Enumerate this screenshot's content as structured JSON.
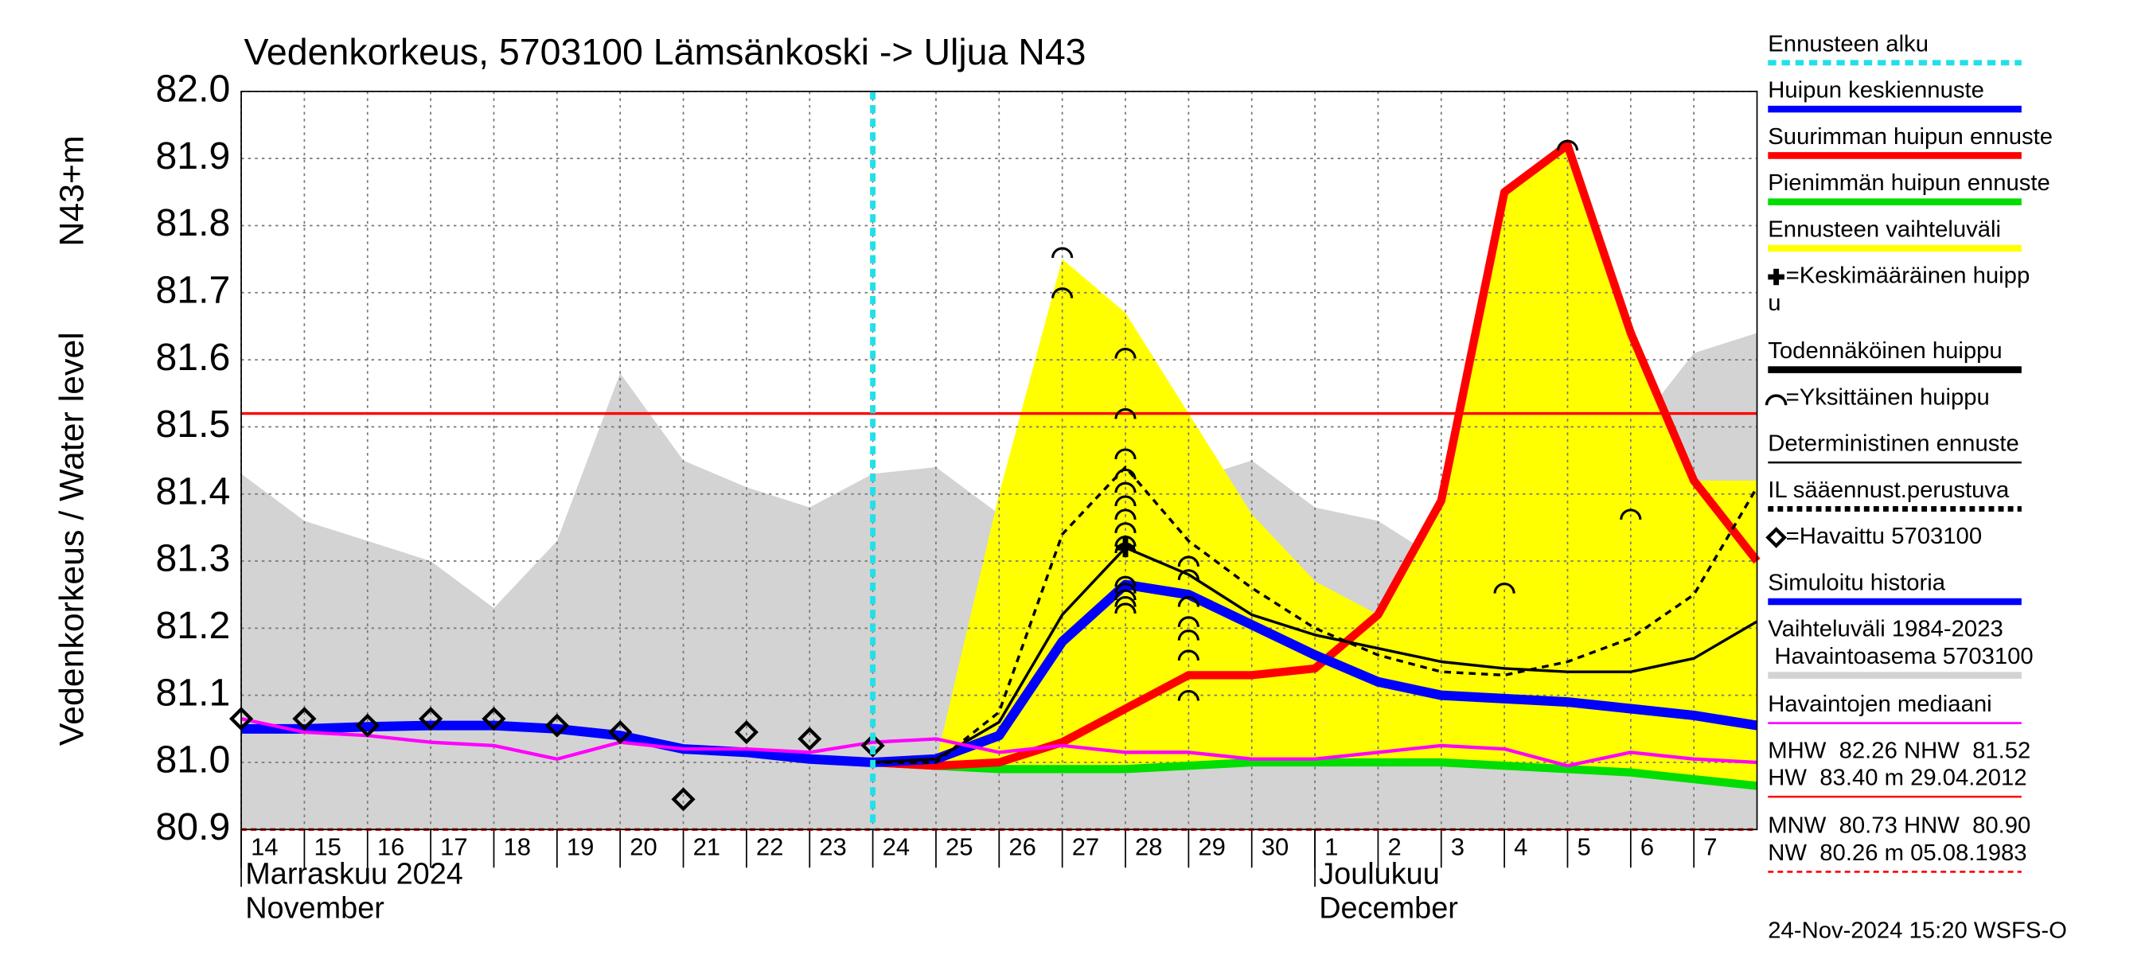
{
  "chart_data": {
    "type": "line",
    "title": "Vedenkorkeus, 5703100 Lämsänkoski -> Uljua N43",
    "ylabel": [
      "Vedenkorkeus / Water level",
      "N43+m"
    ],
    "footer": "24-Nov-2024 15:20 WSFS-O",
    "grid": true,
    "xlim": [
      0,
      24
    ],
    "ylim": [
      80.9,
      82.0
    ],
    "yticks": [
      {
        "value": 80.9,
        "label": "80.9"
      },
      {
        "value": 81.0,
        "label": "81.0"
      },
      81.1,
      81.2,
      81.3,
      81.4,
      81.5,
      81.6,
      81.7,
      81.8,
      81.9,
      {
        "value": 82.0,
        "label": "82.0"
      }
    ],
    "xticks": [
      {
        "value": 0,
        "label": "14"
      },
      {
        "value": 1,
        "label": "15"
      },
      {
        "value": 2,
        "label": "16"
      },
      {
        "value": 3,
        "label": "17"
      },
      {
        "value": 4,
        "label": "18"
      },
      {
        "value": 5,
        "label": "19"
      },
      {
        "value": 6,
        "label": "20"
      },
      {
        "value": 7,
        "label": "21"
      },
      {
        "value": 8,
        "label": "22"
      },
      {
        "value": 9,
        "label": "23"
      },
      {
        "value": 10,
        "label": "24"
      },
      {
        "value": 11,
        "label": "25"
      },
      {
        "value": 12,
        "label": "26"
      },
      {
        "value": 13,
        "label": "27"
      },
      {
        "value": 14,
        "label": "28"
      },
      {
        "value": 15,
        "label": "29"
      },
      {
        "value": 16,
        "label": "30"
      },
      {
        "value": 17,
        "label": "1"
      },
      {
        "value": 18,
        "label": "2"
      },
      {
        "value": 19,
        "label": "3"
      },
      {
        "value": 20,
        "label": "4"
      },
      {
        "value": 21,
        "label": "5"
      },
      {
        "value": 22,
        "label": "6"
      },
      {
        "value": 23,
        "label": "7"
      }
    ],
    "months": [
      {
        "value": 0,
        "label": [
          "Marraskuu 2024",
          "November"
        ]
      },
      {
        "value": 17,
        "label": [
          "Joulukuu",
          "December"
        ]
      }
    ],
    "forecast_start": 10,
    "hlines": [
      {
        "value": 81.52,
        "color": "#ff0000",
        "dashed": false
      },
      {
        "value": 80.9,
        "color": "#ff0000",
        "dashed": true
      }
    ],
    "x": [
      0,
      1,
      2,
      3,
      4,
      5,
      6,
      7,
      8,
      9,
      10,
      11,
      12,
      13,
      14,
      15,
      16,
      17,
      18,
      19,
      20,
      21,
      22,
      23,
      24
    ],
    "series": [
      {
        "kind": "band",
        "color": "#d3d3d3",
        "upper": [
          81.43,
          81.36,
          81.33,
          81.3,
          81.23,
          81.33,
          81.58,
          81.45,
          81.41,
          81.38,
          81.43,
          81.44,
          81.37,
          81.46,
          81.43,
          81.42,
          81.45,
          81.38,
          81.36,
          81.3,
          81.33,
          81.3,
          81.49,
          81.61,
          81.64
        ],
        "lower": [
          80.9,
          80.9,
          80.9,
          80.9,
          80.9,
          80.9,
          80.9,
          80.9,
          80.9,
          80.9,
          80.9,
          80.9,
          80.9,
          80.9,
          80.9,
          80.9,
          80.9,
          80.9,
          80.9,
          80.9,
          80.9,
          80.9,
          80.9,
          80.9,
          80.9
        ]
      },
      {
        "kind": "band",
        "color": "#ffff00",
        "upper": [
          null,
          null,
          null,
          null,
          null,
          null,
          null,
          null,
          null,
          null,
          81.0,
          81.0,
          81.4,
          81.75,
          81.67,
          81.52,
          81.37,
          81.27,
          81.22,
          81.39,
          81.85,
          81.92,
          81.64,
          81.42,
          81.42
        ],
        "lower": [
          null,
          null,
          null,
          null,
          null,
          null,
          null,
          null,
          null,
          null,
          81.0,
          80.995,
          80.99,
          80.99,
          80.99,
          80.995,
          81.0,
          81.0,
          81.0,
          81.0,
          80.995,
          80.99,
          80.985,
          80.975,
          80.965
        ]
      },
      {
        "kind": "line",
        "color": "#00dd00",
        "width": 6,
        "values": [
          null,
          null,
          null,
          null,
          null,
          null,
          null,
          null,
          null,
          null,
          81.0,
          80.995,
          80.99,
          80.99,
          80.99,
          80.995,
          81.0,
          81.0,
          81.0,
          81.0,
          80.995,
          80.99,
          80.985,
          80.975,
          80.965
        ]
      },
      {
        "kind": "line",
        "color": "#ff0000",
        "width": 6,
        "values": [
          null,
          null,
          null,
          null,
          null,
          null,
          null,
          null,
          null,
          null,
          81.0,
          80.995,
          81.0,
          81.03,
          81.08,
          81.13,
          81.13,
          81.14,
          81.22,
          81.39,
          81.85,
          81.92,
          81.64,
          81.42,
          81.3
        ]
      },
      {
        "kind": "line",
        "color": "#0000ff",
        "width": 7,
        "values": [
          81.05,
          81.05,
          81.053,
          81.055,
          81.055,
          81.05,
          81.04,
          81.02,
          81.015,
          81.005,
          81.0,
          81.005,
          81.04,
          81.18,
          81.265,
          81.25,
          81.205,
          81.16,
          81.12,
          81.1,
          81.095,
          81.09,
          81.08,
          81.07,
          81.055
        ]
      },
      {
        "kind": "line",
        "color": "#000000",
        "width": 2,
        "values": [
          null,
          null,
          null,
          null,
          null,
          null,
          null,
          null,
          null,
          null,
          81.0,
          81.005,
          81.06,
          81.22,
          81.32,
          81.28,
          81.22,
          81.19,
          81.17,
          81.15,
          81.14,
          81.135,
          81.135,
          81.155,
          81.21
        ]
      },
      {
        "kind": "line",
        "color": "#000000",
        "width": 2,
        "dashed": true,
        "values": [
          null,
          null,
          null,
          null,
          null,
          null,
          null,
          null,
          null,
          null,
          81.0,
          81.0,
          81.075,
          81.34,
          81.44,
          81.33,
          81.26,
          81.2,
          81.16,
          81.135,
          81.13,
          81.15,
          81.185,
          81.25,
          81.41
        ]
      },
      {
        "kind": "line",
        "color": "#ff00ff",
        "width": 2.5,
        "values": [
          81.065,
          81.045,
          81.04,
          81.03,
          81.025,
          81.005,
          81.03,
          81.02,
          81.02,
          81.015,
          81.03,
          81.035,
          81.015,
          81.025,
          81.015,
          81.015,
          81.005,
          81.005,
          81.015,
          81.025,
          81.02,
          80.995,
          81.015,
          81.005,
          81.0
        ]
      },
      {
        "kind": "markers",
        "marker": "diamond",
        "color": "#000000",
        "values": [
          81.065,
          81.065,
          81.055,
          81.065,
          81.065,
          81.055,
          81.045,
          80.945,
          81.045,
          81.035,
          81.025,
          null,
          null,
          null,
          null,
          null,
          null,
          null,
          null,
          null,
          null,
          null,
          null,
          null,
          null
        ]
      },
      {
        "kind": "markers",
        "marker": "arc",
        "color": "#000000",
        "x": [
          13,
          13,
          14,
          14,
          14,
          14,
          14,
          14,
          14,
          14,
          14,
          14,
          14,
          14,
          14,
          14,
          14,
          15,
          15,
          15,
          15,
          15,
          15,
          15,
          20,
          21,
          22
        ],
        "values": [
          81.76,
          81.7,
          81.61,
          81.52,
          81.46,
          81.43,
          81.41,
          81.39,
          81.37,
          81.35,
          81.33,
          81.32,
          81.27,
          81.26,
          81.25,
          81.24,
          81.23,
          81.3,
          81.28,
          81.24,
          81.21,
          81.19,
          81.16,
          81.1,
          81.26,
          81.92,
          81.37
        ]
      },
      {
        "kind": "markers",
        "marker": "plus",
        "color": "#000000",
        "x": [
          14
        ],
        "values": [
          81.32
        ]
      }
    ],
    "legend": [
      {
        "label": [
          "Ennusteen alku"
        ],
        "color": "#22e0e8",
        "style": "dashed"
      },
      {
        "label": [
          "Huipun keskiennuste"
        ],
        "color": "#0000ff",
        "style": "line"
      },
      {
        "label": [
          "Suurimman huipun ennuste"
        ],
        "color": "#ff0000",
        "style": "line"
      },
      {
        "label": [
          "Pienimmän huipun ennuste"
        ],
        "color": "#00dd00",
        "style": "line"
      },
      {
        "label": [
          "Ennusteen vaihteluväli"
        ],
        "color": "#ffff00",
        "style": "line"
      },
      {
        "label": [
          "=Keskimääräinen huipp",
          "u"
        ],
        "color": "#000000",
        "style": "plus"
      },
      {
        "label": [
          "Todennäköinen huippu"
        ],
        "color": "#000000",
        "style": "line"
      },
      {
        "label": [
          "=Yksittäinen huippu"
        ],
        "color": "#000000",
        "style": "arc"
      },
      {
        "label": [
          "Deterministinen ennuste"
        ],
        "color": "#000000",
        "style": "thin"
      },
      {
        "label": [
          "IL sääennust.perustuva"
        ],
        "color": "#000000",
        "style": "dashed"
      },
      {
        "label": [
          "=Havaittu 5703100"
        ],
        "color": "#000000",
        "style": "diamond"
      },
      {
        "label": [
          "Simuloitu historia"
        ],
        "color": "#0000ff",
        "style": "line"
      },
      {
        "label": [
          "Vaihteluväli 1984-2023",
          " Havaintoasema 5703100"
        ],
        "color": "#d3d3d3",
        "style": "line"
      },
      {
        "label": [
          "Havaintojen mediaani"
        ],
        "color": "#ff00ff",
        "style": "thin"
      },
      {
        "label": [
          "MHW  82.26 NHW  81.52",
          "HW  83.40 m 29.04.2012"
        ],
        "color": "#ff0000",
        "style": "thin"
      },
      {
        "label": [
          "MNW  80.73 HNW  80.90",
          "NW  80.26 m 05.08.1983"
        ],
        "color": "#ff0000",
        "style": "dashedthin"
      }
    ]
  }
}
